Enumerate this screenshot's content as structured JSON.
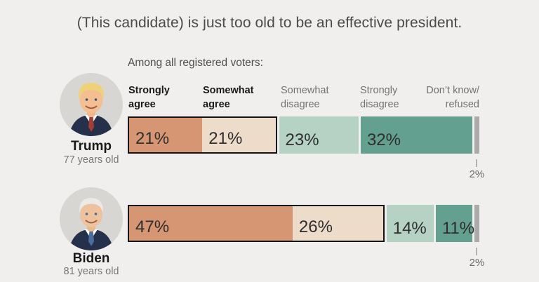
{
  "title": "(This candidate) is just too old to be an effective president.",
  "subtitle": "Among all registered voters:",
  "column_headers": [
    {
      "line1": "Strongly",
      "line2": "agree"
    },
    {
      "line1": "Somewhat",
      "line2": "agree"
    },
    {
      "line1": "Somewhat",
      "line2": "disagree"
    },
    {
      "line1": "Strongly",
      "line2": "disagree"
    },
    {
      "line1": "Don’t know/",
      "line2": "refused"
    }
  ],
  "chart_data": {
    "type": "bar",
    "orientation": "horizontal",
    "stacked": true,
    "categories": [
      "Strongly agree",
      "Somewhat agree",
      "Somewhat disagree",
      "Strongly disagree",
      "Don’t know/refused"
    ],
    "unit": "%",
    "xlim": [
      0,
      100
    ],
    "colors": {
      "strongly_agree": "#d69573",
      "somewhat_agree": "#eedccb",
      "somewhat_disagree": "#b5d2c5",
      "strongly_disagree": "#64a08f",
      "dont_know": "#ababab",
      "agree_outline": "#141414",
      "background": "#f0efed"
    },
    "rows": [
      {
        "name": "Trump",
        "age_label": "77 years old",
        "values": [
          21,
          21,
          23,
          32,
          2
        ],
        "labels": [
          "21%",
          "21%",
          "23%",
          "32%",
          "2%"
        ]
      },
      {
        "name": "Biden",
        "age_label": "81 years old",
        "values": [
          47,
          26,
          14,
          11,
          2
        ],
        "labels": [
          "47%",
          "26%",
          "14%",
          "11%",
          "2%"
        ]
      }
    ]
  }
}
